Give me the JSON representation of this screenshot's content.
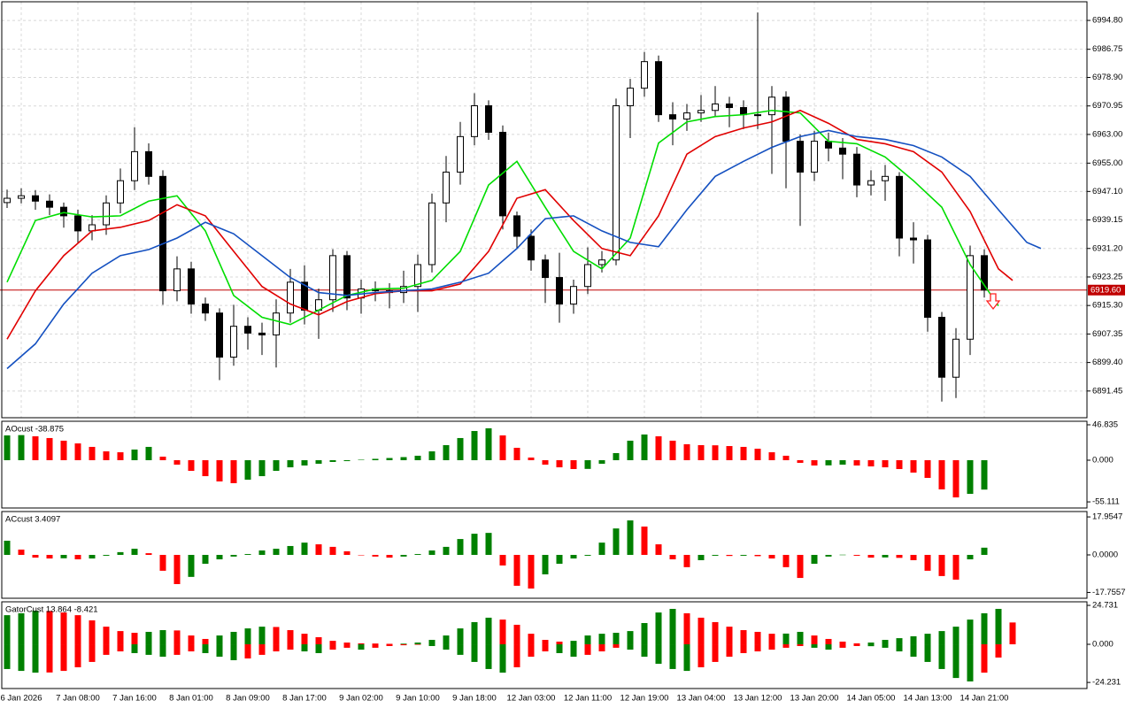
{
  "chart_data": [
    {
      "type": "candlestick",
      "grid": true,
      "categories": [
        null,
        "6 Jan 2026",
        null,
        null,
        null,
        "7 Jan 08:00",
        null,
        null,
        null,
        "7 Jan 16:00",
        null,
        null,
        null,
        "8 Jan 01:00",
        null,
        null,
        null,
        "8 Jan 09:00",
        null,
        null,
        null,
        "8 Jan 17:00",
        null,
        null,
        null,
        "9 Jan 02:00",
        null,
        null,
        null,
        "9 Jan 10:00",
        null,
        null,
        null,
        "9 Jan 18:00",
        null,
        null,
        null,
        "12 Jan 03:00",
        null,
        null,
        null,
        "12 Jan 11:00",
        null,
        null,
        null,
        "12 Jan 19:00",
        null,
        null,
        null,
        "13 Jan 04:00",
        null,
        null,
        null,
        "13 Jan 12:00",
        null,
        null,
        null,
        "13 Jan 20:00",
        null,
        null,
        null,
        "14 Jan 05:00",
        null,
        null,
        null,
        "14 Jan 13:00",
        null,
        null,
        null,
        "14 Jan 21:00"
      ],
      "open": [
        6944.0,
        6945.2,
        6945.9,
        6944.4,
        6942.7,
        6940.3,
        6936.1,
        6937.8,
        6943.9,
        6950.1,
        6958.2,
        6951.3,
        6919.4,
        6925.5,
        6915.7,
        6913.2,
        6900.9,
        6909.5,
        6907.6,
        6907.1,
        6913.2,
        6921.8,
        6914.0,
        6916.9,
        6929.2,
        6917.4,
        6919.9,
        6919.4,
        6918.9,
        6920.6,
        6926.7,
        6943.9,
        6952.5,
        6962.4,
        6971.0,
        6963.6,
        6940.3,
        6934.6,
        6928.0,
        6923.1,
        6915.7,
        6920.6,
        6926.7,
        6928.0,
        6971.0,
        6975.9,
        6983.3,
        6968.5,
        6967.3,
        6969.0,
        6969.7,
        6971.5,
        6970.5,
        6968.5,
        6968.5,
        6973.4,
        6961.1,
        6952.5,
        6961.1,
        6959.2,
        6957.5,
        6948.9,
        6950.1,
        6951.3,
        6934.1,
        6933.6,
        6912.0,
        6895.3,
        6905.9,
        6929.2
      ],
      "high": [
        6947.6,
        6948.0,
        6947.5,
        6946.3,
        6944.0,
        6942.0,
        6940.5,
        6946.0,
        6953.5,
        6965.0,
        6960.5,
        6953.0,
        6929.0,
        6927.5,
        6917.5,
        6914.5,
        6915.5,
        6912.0,
        6910.5,
        6917.0,
        6925.5,
        6926.5,
        6920.0,
        6931.0,
        6930.5,
        6922.5,
        6922.0,
        6921.5,
        6925.0,
        6929.5,
        6946.5,
        6957.0,
        6966.5,
        6974.5,
        6972.5,
        6965.5,
        6941.5,
        6936.5,
        6929.5,
        6930.0,
        6922.5,
        6931.5,
        6930.5,
        6973.0,
        6978.5,
        6986.0,
        6985.0,
        6972.0,
        6971.5,
        6974.0,
        6976.5,
        6973.5,
        6972.5,
        6997.0,
        6976.5,
        6975.0,
        6963.0,
        6964.0,
        6963.5,
        6962.0,
        6959.5,
        6953.0,
        6954.5,
        6952.5,
        6938.5,
        6935.0,
        6913.5,
        6909.0,
        6932.0,
        6931.0
      ],
      "low": [
        6942.5,
        6943.8,
        6942.0,
        6940.5,
        6937.0,
        6932.8,
        6933.5,
        6935.0,
        6941.0,
        6947.5,
        6949.0,
        6915.5,
        6916.5,
        6913.0,
        6911.0,
        6894.5,
        6898.5,
        6903.0,
        6901.5,
        6898.0,
        6910.5,
        6910.0,
        6906.0,
        6913.5,
        6914.0,
        6913.0,
        6916.5,
        6914.5,
        6916.0,
        6913.5,
        6924.5,
        6938.5,
        6949.0,
        6960.0,
        6961.5,
        6936.5,
        6931.0,
        6925.0,
        6916.0,
        6910.5,
        6913.0,
        6918.5,
        6924.5,
        6926.5,
        6962.0,
        6973.5,
        6966.5,
        6960.0,
        6964.0,
        6966.5,
        6968.0,
        6965.0,
        6964.5,
        6964.5,
        6952.0,
        6948.0,
        6937.5,
        6950.0,
        6955.5,
        6950.5,
        6945.5,
        6946.0,
        6944.5,
        6929.0,
        6927.0,
        6908.0,
        6888.5,
        6889.5,
        6901.5,
        6917.5
      ],
      "close": [
        6945.2,
        6945.9,
        6944.4,
        6942.7,
        6940.3,
        6936.1,
        6937.8,
        6943.9,
        6950.1,
        6958.2,
        6951.3,
        6919.4,
        6925.5,
        6915.7,
        6913.2,
        6900.9,
        6909.5,
        6907.6,
        6907.1,
        6913.2,
        6921.8,
        6914.0,
        6916.9,
        6929.2,
        6917.4,
        6919.9,
        6919.4,
        6918.9,
        6920.6,
        6926.7,
        6943.9,
        6952.5,
        6962.4,
        6971.0,
        6963.6,
        6940.3,
        6934.6,
        6928.0,
        6923.1,
        6915.7,
        6920.6,
        6926.7,
        6928.0,
        6971.0,
        6975.9,
        6983.3,
        6968.5,
        6967.3,
        6969.0,
        6969.7,
        6971.5,
        6970.5,
        6968.5,
        6968.5,
        6973.4,
        6961.1,
        6952.5,
        6961.1,
        6959.2,
        6957.5,
        6948.9,
        6950.1,
        6951.3,
        6934.1,
        6933.6,
        6912.0,
        6895.3,
        6905.9,
        6929.2,
        6919.6
      ],
      "series": [
        {
          "color": "#00dd00",
          "x": [
            0,
            2,
            4,
            6,
            8,
            10,
            12,
            14,
            16,
            18,
            20,
            22,
            24,
            26,
            28,
            30,
            32,
            34,
            36,
            38,
            40,
            42,
            44,
            46,
            48,
            50,
            52,
            54,
            56,
            58,
            60,
            62,
            64,
            66,
            68,
            70
          ],
          "values": [
            6921.8,
            6939.0,
            6941.2,
            6940.0,
            6940.3,
            6944.4,
            6945.9,
            6936.1,
            6918.1,
            6912.0,
            6910.0,
            6914.0,
            6918.1,
            6919.9,
            6920.1,
            6922.3,
            6930.4,
            6948.9,
            6955.5,
            6942.7,
            6930.4,
            6925.5,
            6934.1,
            6960.6,
            6966.5,
            6968.0,
            6968.5,
            6969.7,
            6969.0,
            6961.1,
            6960.4,
            6956.7,
            6950.1,
            6942.7,
            6926.7,
            6915.2
          ]
        },
        {
          "color": "#e00000",
          "x": [
            0,
            2,
            4,
            6,
            8,
            10,
            12,
            14,
            16,
            18,
            20,
            22,
            24,
            26,
            28,
            30,
            32,
            34,
            36,
            38,
            40,
            42,
            44,
            46,
            48,
            50,
            52,
            54,
            56,
            58,
            60,
            62,
            64,
            66,
            68,
            70,
            71
          ],
          "values": [
            6905.9,
            6919.4,
            6929.2,
            6936.1,
            6937.1,
            6939.0,
            6943.4,
            6940.3,
            6930.4,
            6920.6,
            6915.7,
            6912.7,
            6916.4,
            6918.6,
            6919.4,
            6919.4,
            6921.3,
            6930.4,
            6945.2,
            6947.6,
            6939.0,
            6931.2,
            6929.2,
            6940.3,
            6957.5,
            6962.4,
            6964.8,
            6966.5,
            6969.7,
            6966.1,
            6961.6,
            6960.4,
            6958.2,
            6952.5,
            6941.5,
            6925.5,
            6922.3
          ]
        },
        {
          "color": "#1450c0",
          "x": [
            0,
            2,
            4,
            6,
            8,
            10,
            12,
            14,
            16,
            18,
            20,
            22,
            24,
            26,
            28,
            30,
            32,
            34,
            36,
            38,
            40,
            42,
            44,
            46,
            48,
            50,
            52,
            54,
            56,
            58,
            60,
            62,
            64,
            66,
            68,
            70,
            72,
            73
          ],
          "values": [
            6897.7,
            6904.6,
            6915.7,
            6924.3,
            6929.2,
            6930.9,
            6934.1,
            6938.5,
            6935.3,
            6929.2,
            6923.1,
            6918.9,
            6918.1,
            6918.9,
            6919.4,
            6919.9,
            6921.8,
            6924.3,
            6931.2,
            6939.5,
            6940.3,
            6936.1,
            6932.9,
            6931.7,
            6942.0,
            6951.3,
            6955.5,
            6959.4,
            6962.4,
            6964.1,
            6962.4,
            6961.6,
            6959.9,
            6956.7,
            6951.3,
            6942.0,
            6932.9,
            6931.2
          ]
        }
      ],
      "current_price": {
        "value": 6919.6,
        "label": "6919.60"
      },
      "ylim": [
        6884,
        7000
      ],
      "yticks": [
        {
          "value": 6994.8,
          "label": "6994.80"
        },
        6986.75,
        {
          "value": 6978.9,
          "label": "6978.90"
        },
        6970.95,
        {
          "value": 6963,
          "label": "6963.00"
        },
        {
          "value": 6955,
          "label": "6955.00"
        },
        {
          "value": 6947.1,
          "label": "6947.10"
        },
        6939.15,
        {
          "value": 6931.2,
          "label": "6931.20"
        },
        6923.25,
        {
          "value": 6915.3,
          "label": "6915.30"
        },
        6907.35,
        {
          "value": 6899.4,
          "label": "6899.40"
        },
        6891.45
      ]
    },
    {
      "type": "oscillator",
      "title": "AOcust -38.875",
      "up_color": "#008000",
      "down_color": "#ff0000",
      "values": [
        32.8,
        33.2,
        31.6,
        29.3,
        25.8,
        22.2,
        17.6,
        11.7,
        10.5,
        14.1,
        17.6,
        4.7,
        -5.9,
        -14.1,
        -21.1,
        -28.1,
        -30.4,
        -25.8,
        -21.1,
        -14.1,
        -9.4,
        -7.0,
        -4.7,
        -2.3,
        -1.2,
        0.6,
        1.8,
        2.9,
        4.1,
        5.9,
        11.7,
        19.9,
        29.3,
        38.6,
        42.2,
        32.8,
        16.4,
        3.5,
        -5.9,
        -9.4,
        -11.7,
        -11.5,
        -4.7,
        9.4,
        25.8,
        34.0,
        31.6,
        25.8,
        21.1,
        19.9,
        19.7,
        18.7,
        17.6,
        15.2,
        10.5,
        5.9,
        -3.5,
        -7.0,
        -6.8,
        -5.9,
        -7.0,
        -8.2,
        -9.4,
        -11.7,
        -16.4,
        -23.4,
        -38.6,
        -49.2,
        -44.5,
        -38.875
      ],
      "ylim": [
        -63.2,
        51.5
      ],
      "yticks": [
        46.835,
        {
          "value": 0,
          "label": "0.000"
        },
        -55.111
      ]
    },
    {
      "type": "oscillator",
      "title": "ACcust 3.4097",
      "up_color": "#008000",
      "down_color": "#ff0000",
      "values": [
        6.7,
        2.5,
        -1.3,
        -1.7,
        -1.6,
        -2.1,
        -1.7,
        -0.4,
        1.3,
        2.9,
        0.8,
        -7.5,
        -13.8,
        -10.4,
        -4.2,
        -2.1,
        -0.8,
        0.4,
        2.1,
        2.9,
        4.2,
        5.8,
        5.0,
        3.8,
        1.7,
        0.0,
        -0.8,
        -1.3,
        -0.8,
        0.4,
        2.1,
        3.8,
        7.5,
        10.0,
        10.4,
        -5.0,
        -14.6,
        -15.9,
        -9.2,
        -4.2,
        -1.7,
        -0.4,
        5.8,
        12.5,
        16.3,
        13.4,
        5.0,
        -2.1,
        -5.8,
        -2.5,
        -0.4,
        -0.5,
        -0.4,
        -0.6,
        -1.7,
        -5.8,
        -10.9,
        -4.2,
        -0.8,
        0.1,
        -0.4,
        -1.3,
        -1.2,
        -1.4,
        -2.5,
        -7.5,
        -10.0,
        -11.7,
        -2.1,
        3.4097
      ],
      "ylim": [
        -20.5,
        20.5
      ],
      "yticks": [
        17.9547,
        {
          "value": 0,
          "label": "0.0000"
        },
        -17.7557
      ]
    },
    {
      "type": "gator",
      "title": "GatorCust 13.864 -8.421",
      "up_color": "#008000",
      "down_color": "#ff0000",
      "series": [
        {
          "values": [
            18.5,
            19.7,
            21.4,
            21.2,
            20.2,
            18.5,
            15.2,
            11.2,
            8.4,
            7.3,
            7.9,
            9.0,
            8.8,
            5.6,
            3.4,
            5.6,
            7.9,
            10.1,
            11.2,
            11.0,
            9.0,
            6.7,
            4.5,
            2.2,
            1.1,
            0.6,
            0.5,
            0.3,
            0.4,
            1.1,
            2.8,
            5.6,
            10.1,
            14.1,
            16.9,
            15.7,
            12.4,
            6.7,
            2.8,
            1.7,
            2.2,
            5.6,
            6.7,
            7.3,
            8.4,
            13.5,
            20.2,
            22.5,
            19.7,
            16.9,
            14.1,
            11.2,
            9.0,
            7.9,
            6.7,
            6.8,
            7.9,
            5.6,
            3.4,
            1.7,
            0.6,
            1.1,
            2.8,
            3.9,
            5.1,
            6.7,
            8.4,
            11.2,
            15.7,
            19.7,
            22.5,
            13.864
          ]
        },
        {
          "values": [
            -15.7,
            -16.9,
            -18.0,
            -17.9,
            -16.9,
            -14.6,
            -11.2,
            -6.7,
            -4.5,
            -5.6,
            -6.7,
            -7.9,
            -6.7,
            -4.5,
            -5.6,
            -7.9,
            -10.1,
            -9.0,
            -6.7,
            -4.5,
            -3.4,
            -4.5,
            -5.6,
            -3.4,
            -2.2,
            -3.4,
            -2.2,
            -1.1,
            -0.6,
            -0.3,
            -1.1,
            -3.4,
            -6.7,
            -11.2,
            -15.7,
            -18.0,
            -14.6,
            -7.9,
            -4.5,
            -5.6,
            -7.9,
            -6.7,
            -4.5,
            -2.2,
            -3.4,
            -7.9,
            -12.4,
            -15.7,
            -16.9,
            -14.6,
            -11.2,
            -7.9,
            -5.6,
            -4.5,
            -3.4,
            -2.2,
            -1.1,
            -2.2,
            -3.4,
            -2.2,
            -1.1,
            -1.2,
            -2.2,
            -4.5,
            -7.9,
            -11.2,
            -15.7,
            -21.4,
            -23.6,
            -18.0,
            -8.421,
            null
          ]
        }
      ],
      "ylim": [
        -28.1,
        27.0
      ],
      "yticks": [
        24.731,
        {
          "value": 0,
          "label": "0.000"
        },
        -24.231
      ]
    }
  ]
}
